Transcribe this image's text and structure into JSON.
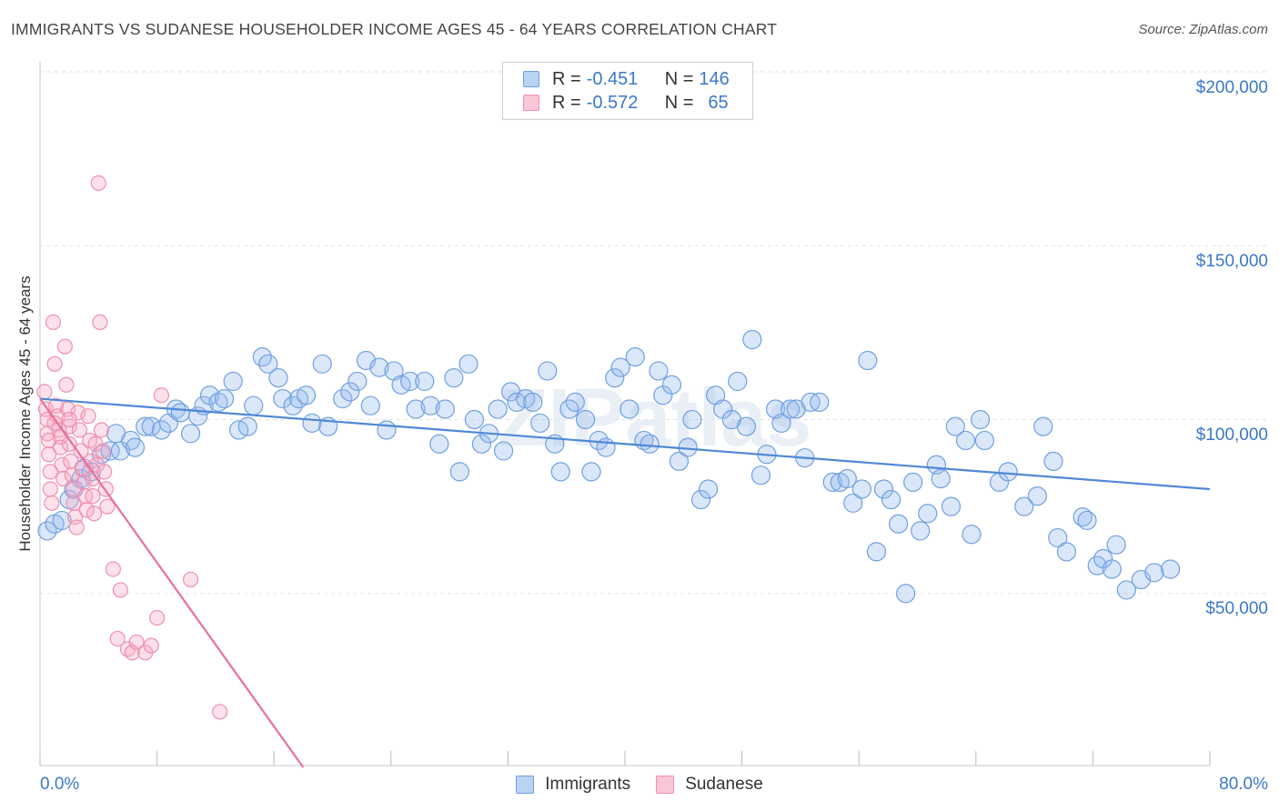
{
  "title": "IMMIGRANTS VS SUDANESE HOUSEHOLDER INCOME AGES 45 - 64 YEARS CORRELATION CHART",
  "source": "Source: ZipAtlas.com",
  "watermark": "ZIPatlas",
  "legend": {
    "rows": [
      {
        "r_label": "R = ",
        "r_value": "-0.451",
        "n_label": "N = ",
        "n_value": "146",
        "color": "#6fa0e0",
        "fill": "#b9d3f3"
      },
      {
        "r_label": "R = ",
        "r_value": "-0.572",
        "n_label": "N = ",
        "n_value": "65",
        "color": "#f08fb0",
        "fill": "#f8c6d6"
      }
    ]
  },
  "bottom_legend": [
    "Immigrants",
    "Sudanese"
  ],
  "chart_data": {
    "type": "scatter",
    "title": "IMMIGRANTS VS SUDANESE HOUSEHOLDER INCOME AGES 45 - 64 YEARS CORRELATION CHART",
    "ylabel": "Householder Income Ages 45 - 64 years",
    "xlabel": "",
    "xlim": [
      0,
      80
    ],
    "ylim": [
      0,
      200000
    ],
    "x_tick_labels": [
      "0.0%",
      "80.0%"
    ],
    "y_ticks": [
      50000,
      100000,
      150000,
      200000
    ],
    "y_tick_labels": [
      "$50,000",
      "$100,000",
      "$150,000",
      "$200,000"
    ],
    "grid": true,
    "series": [
      {
        "name": "Immigrants",
        "color": "#4f88d6",
        "trend": {
          "x": [
            0,
            80
          ],
          "y": [
            106000,
            80000
          ]
        },
        "points": [
          [
            0.5,
            68000
          ],
          [
            1,
            70000
          ],
          [
            1.5,
            71000
          ],
          [
            2,
            77000
          ],
          [
            2.3,
            80000
          ],
          [
            2.8,
            83000
          ],
          [
            3,
            86000
          ],
          [
            3.5,
            85000
          ],
          [
            4.2,
            90000
          ],
          [
            4.8,
            91000
          ],
          [
            5.2,
            96000
          ],
          [
            5.5,
            91000
          ],
          [
            6.2,
            94000
          ],
          [
            6.5,
            92000
          ],
          [
            7.2,
            98000
          ],
          [
            7.6,
            98000
          ],
          [
            8.3,
            97000
          ],
          [
            8.8,
            99000
          ],
          [
            9.3,
            103000
          ],
          [
            9.6,
            102000
          ],
          [
            10.3,
            96000
          ],
          [
            10.8,
            101000
          ],
          [
            11.2,
            104000
          ],
          [
            11.6,
            107000
          ],
          [
            12.2,
            105000
          ],
          [
            12.6,
            106000
          ],
          [
            13.2,
            111000
          ],
          [
            13.6,
            97000
          ],
          [
            14.2,
            98000
          ],
          [
            14.6,
            104000
          ],
          [
            15.2,
            118000
          ],
          [
            15.6,
            116000
          ],
          [
            16.3,
            112000
          ],
          [
            16.6,
            106000
          ],
          [
            17.3,
            104000
          ],
          [
            17.7,
            106000
          ],
          [
            18.2,
            107000
          ],
          [
            18.6,
            99000
          ],
          [
            19.3,
            116000
          ],
          [
            19.7,
            98000
          ],
          [
            20.7,
            106000
          ],
          [
            21.2,
            108000
          ],
          [
            21.7,
            111000
          ],
          [
            22.3,
            117000
          ],
          [
            22.6,
            104000
          ],
          [
            23.2,
            115000
          ],
          [
            23.7,
            97000
          ],
          [
            24.2,
            114000
          ],
          [
            24.7,
            110000
          ],
          [
            25.3,
            111000
          ],
          [
            25.7,
            103000
          ],
          [
            26.3,
            111000
          ],
          [
            26.7,
            104000
          ],
          [
            27.3,
            93000
          ],
          [
            27.7,
            103000
          ],
          [
            28.3,
            112000
          ],
          [
            28.7,
            85000
          ],
          [
            29.3,
            116000
          ],
          [
            29.7,
            100000
          ],
          [
            30.2,
            93000
          ],
          [
            30.7,
            96000
          ],
          [
            31.3,
            103000
          ],
          [
            31.7,
            91000
          ],
          [
            32.2,
            108000
          ],
          [
            32.6,
            105000
          ],
          [
            33.2,
            106000
          ],
          [
            33.7,
            105000
          ],
          [
            34.2,
            99000
          ],
          [
            34.7,
            114000
          ],
          [
            35.2,
            93000
          ],
          [
            35.6,
            85000
          ],
          [
            36.2,
            103000
          ],
          [
            36.6,
            105000
          ],
          [
            37.3,
            100000
          ],
          [
            37.7,
            85000
          ],
          [
            38.2,
            94000
          ],
          [
            38.7,
            92000
          ],
          [
            39.3,
            112000
          ],
          [
            39.7,
            115000
          ],
          [
            40.3,
            103000
          ],
          [
            40.7,
            118000
          ],
          [
            41.3,
            94000
          ],
          [
            41.7,
            93000
          ],
          [
            42.3,
            114000
          ],
          [
            42.6,
            107000
          ],
          [
            43.2,
            110000
          ],
          [
            43.7,
            88000
          ],
          [
            44.3,
            92000
          ],
          [
            44.6,
            100000
          ],
          [
            45.2,
            77000
          ],
          [
            45.7,
            80000
          ],
          [
            46.2,
            107000
          ],
          [
            46.7,
            103000
          ],
          [
            47.3,
            100000
          ],
          [
            47.7,
            111000
          ],
          [
            48.3,
            98000
          ],
          [
            48.7,
            123000
          ],
          [
            49.3,
            84000
          ],
          [
            49.7,
            90000
          ],
          [
            50.3,
            103000
          ],
          [
            50.7,
            99000
          ],
          [
            51.3,
            103000
          ],
          [
            51.7,
            103000
          ],
          [
            52.3,
            89000
          ],
          [
            52.7,
            105000
          ],
          [
            53.3,
            105000
          ],
          [
            54.2,
            82000
          ],
          [
            54.7,
            82000
          ],
          [
            55.2,
            83000
          ],
          [
            55.6,
            76000
          ],
          [
            56.2,
            80000
          ],
          [
            56.6,
            117000
          ],
          [
            57.2,
            62000
          ],
          [
            57.7,
            80000
          ],
          [
            58.2,
            77000
          ],
          [
            58.7,
            70000
          ],
          [
            59.2,
            50000
          ],
          [
            59.7,
            82000
          ],
          [
            60.2,
            68000
          ],
          [
            60.7,
            73000
          ],
          [
            61.3,
            87000
          ],
          [
            61.6,
            83000
          ],
          [
            62.3,
            75000
          ],
          [
            62.6,
            98000
          ],
          [
            63.3,
            94000
          ],
          [
            63.7,
            67000
          ],
          [
            64.3,
            100000
          ],
          [
            64.6,
            94000
          ],
          [
            65.6,
            82000
          ],
          [
            66.2,
            85000
          ],
          [
            67.3,
            75000
          ],
          [
            68.2,
            78000
          ],
          [
            68.6,
            98000
          ],
          [
            69.3,
            88000
          ],
          [
            69.6,
            66000
          ],
          [
            70.2,
            62000
          ],
          [
            71.3,
            72000
          ],
          [
            71.6,
            71000
          ],
          [
            72.3,
            58000
          ],
          [
            72.7,
            60000
          ],
          [
            73.3,
            57000
          ],
          [
            73.6,
            64000
          ],
          [
            74.3,
            51000
          ],
          [
            75.3,
            54000
          ],
          [
            76.2,
            56000
          ],
          [
            77.3,
            57000
          ]
        ]
      },
      {
        "name": "Sudanese",
        "color": "#e8709a",
        "trend": {
          "x": [
            0,
            18
          ],
          "y": [
            106000,
            0
          ]
        },
        "points": [
          [
            0.3,
            108000
          ],
          [
            0.4,
            103000
          ],
          [
            0.5,
            100000
          ],
          [
            0.5,
            96000
          ],
          [
            0.6,
            94000
          ],
          [
            0.6,
            90000
          ],
          [
            0.7,
            85000
          ],
          [
            0.7,
            80000
          ],
          [
            0.8,
            76000
          ],
          [
            0.9,
            128000
          ],
          [
            1.0,
            116000
          ],
          [
            1.1,
            104000
          ],
          [
            1.2,
            101000
          ],
          [
            1.3,
            97000
          ],
          [
            1.4,
            95000
          ],
          [
            1.4,
            92000
          ],
          [
            1.5,
            87000
          ],
          [
            1.6,
            83000
          ],
          [
            1.7,
            121000
          ],
          [
            1.8,
            110000
          ],
          [
            1.9,
            103000
          ],
          [
            2.0,
            98000
          ],
          [
            2.0,
            93000
          ],
          [
            2.1,
            88000
          ],
          [
            2.2,
            84000
          ],
          [
            2.3,
            80000
          ],
          [
            2.3,
            76000
          ],
          [
            2.4,
            72000
          ],
          [
            2.5,
            69000
          ],
          [
            2.6,
            102000
          ],
          [
            2.7,
            97000
          ],
          [
            2.8,
            91000
          ],
          [
            2.9,
            86000
          ],
          [
            3.0,
            82000
          ],
          [
            3.1,
            78000
          ],
          [
            3.2,
            74000
          ],
          [
            3.3,
            101000
          ],
          [
            3.4,
            94000
          ],
          [
            3.5,
            88000
          ],
          [
            3.6,
            83000
          ],
          [
            3.6,
            78000
          ],
          [
            3.7,
            73000
          ],
          [
            3.8,
            93000
          ],
          [
            3.9,
            87000
          ],
          [
            4.0,
            168000
          ],
          [
            4.1,
            128000
          ],
          [
            4.2,
            97000
          ],
          [
            4.3,
            91000
          ],
          [
            4.4,
            85000
          ],
          [
            4.5,
            80000
          ],
          [
            4.6,
            75000
          ],
          [
            5.0,
            57000
          ],
          [
            5.3,
            37000
          ],
          [
            5.5,
            51000
          ],
          [
            6.0,
            34000
          ],
          [
            6.3,
            33000
          ],
          [
            6.6,
            36000
          ],
          [
            7.2,
            33000
          ],
          [
            7.6,
            35000
          ],
          [
            8.0,
            43000
          ],
          [
            8.3,
            107000
          ],
          [
            10.3,
            54000
          ],
          [
            12.3,
            16000
          ],
          [
            2.0,
            100000
          ],
          [
            1.0,
            99000
          ]
        ]
      }
    ]
  }
}
